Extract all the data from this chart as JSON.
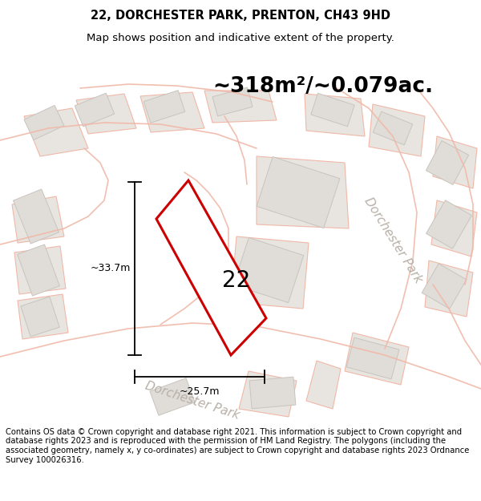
{
  "title": "22, DORCHESTER PARK, PRENTON, CH43 9HD",
  "subtitle": "Map shows position and indicative extent of the property.",
  "area_text": "~318m²/~0.079ac.",
  "property_number": "22",
  "dim_vertical": "~33.7m",
  "dim_horizontal": "~25.7m",
  "street_label_lower": "Dorchester Park",
  "street_label_right": "Dorchester Park",
  "footer": "Contains OS data © Crown copyright and database right 2021. This information is subject to Crown copyright and database rights 2023 and is reproduced with the permission of HM Land Registry. The polygons (including the associated geometry, namely x, y co-ordinates) are subject to Crown copyright and database rights 2023 Ordnance Survey 100026316.",
  "map_bg": "#f2f0ee",
  "block_fill": "#e0ddd8",
  "block_edge": "#c8c4be",
  "road_line": "#f0b8a8",
  "road_line2": "#e8b0a0",
  "property_fill": "#ffffff",
  "property_edge": "#cc0000",
  "dim_color": "#000000",
  "street_color": "#b8b0a8",
  "title_fontsize": 10.5,
  "subtitle_fontsize": 9.5,
  "area_fontsize": 19,
  "number_fontsize": 20,
  "dim_fontsize": 9,
  "street_fontsize": 11,
  "footer_fontsize": 7.2
}
